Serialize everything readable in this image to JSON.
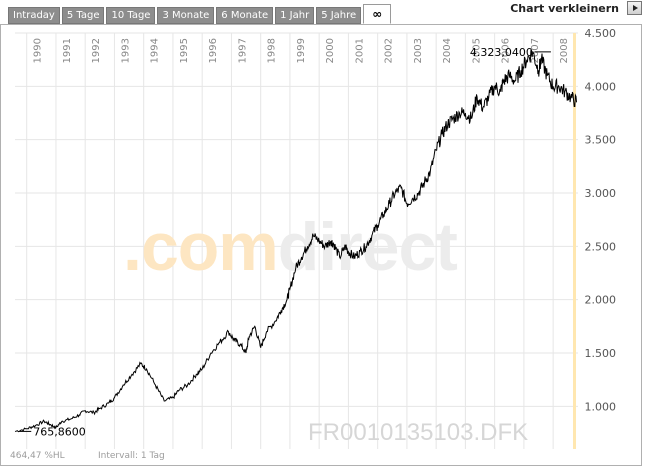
{
  "tabs": [
    {
      "label": "Intraday"
    },
    {
      "label": "5 Tage"
    },
    {
      "label": "10 Tage"
    },
    {
      "label": "3 Monate"
    },
    {
      "label": "6 Monate"
    },
    {
      "label": "1 Jahr"
    },
    {
      "label": "5 Jahre"
    },
    {
      "label": "∞"
    }
  ],
  "header": {
    "shrink_label": "Chart verkleinern"
  },
  "chart_data": {
    "type": "line",
    "watermark": ".comdirect",
    "symbol": "FR0010135103.DFK",
    "info": "464,47 %HL",
    "interval": "Intervall: 1 Tag",
    "high_label": "4.323,0400",
    "low_label": "765,8600",
    "x_ticks": [
      "1990",
      "1991",
      "1992",
      "1993",
      "1994",
      "1995",
      "1996",
      "1997",
      "1998",
      "1999",
      "2000",
      "2001",
      "2002",
      "2003",
      "2004",
      "2005",
      "2006",
      "2007",
      "2008"
    ],
    "y_ticks": [
      "1.000",
      "1.500",
      "2.000",
      "2.500",
      "3.000",
      "3.500",
      "4.000",
      "4.500"
    ],
    "ylim": [
      600,
      4500
    ],
    "xlim": [
      1989.6,
      2008.85
    ],
    "grid": true,
    "series": [
      {
        "x": [
          1989.6,
          1990.0,
          1990.3,
          1990.6,
          1990.8,
          1991.0,
          1991.2,
          1991.5,
          1991.8,
          1992.0,
          1992.3,
          1992.5,
          1992.8,
          1993.0,
          1993.3,
          1993.6,
          1993.9,
          1994.1,
          1994.4,
          1994.7,
          1995.0,
          1995.2,
          1995.5,
          1995.8,
          1996.0,
          1996.3,
          1996.6,
          1996.9,
          1997.1,
          1997.3,
          1997.5,
          1997.6,
          1997.8,
          1998.0,
          1998.2,
          1998.5,
          1998.7,
          1998.9,
          1999.0,
          1999.2,
          1999.4,
          1999.6,
          1999.8,
          2000.0,
          2000.2,
          2000.4,
          2000.5,
          2000.7,
          2000.9,
          2001.0,
          2001.2,
          2001.4,
          2001.6,
          2001.8,
          2002.0,
          2002.2,
          2002.4,
          2002.6,
          2002.8,
          2003.0,
          2003.2,
          2003.4,
          2003.6,
          2003.8,
          2004.0,
          2004.2,
          2004.4,
          2004.6,
          2004.8,
          2005.0,
          2005.2,
          2005.4,
          2005.6,
          2005.8,
          2006.0,
          2006.2,
          2006.3,
          2006.5,
          2006.7,
          2006.9,
          2007.1,
          2007.3,
          2007.5,
          2007.6,
          2007.8,
          2008.0,
          2008.2,
          2008.4,
          2008.6,
          2008.8
        ],
        "y": [
          765,
          790,
          820,
          860,
          830,
          800,
          860,
          880,
          920,
          960,
          940,
          980,
          1030,
          1080,
          1200,
          1300,
          1400,
          1350,
          1200,
          1050,
          1080,
          1150,
          1200,
          1300,
          1350,
          1500,
          1600,
          1700,
          1620,
          1580,
          1500,
          1650,
          1750,
          1550,
          1700,
          1800,
          1900,
          2000,
          2100,
          2300,
          2400,
          2500,
          2600,
          2550,
          2500,
          2550,
          2520,
          2400,
          2500,
          2450,
          2400,
          2450,
          2500,
          2600,
          2700,
          2800,
          2900,
          3000,
          3050,
          2900,
          2950,
          3000,
          3100,
          3200,
          3400,
          3550,
          3650,
          3700,
          3750,
          3750,
          3700,
          3900,
          3800,
          3900,
          4000,
          3950,
          4050,
          4100,
          4050,
          4150,
          4250,
          4320,
          4150,
          4250,
          4100,
          4000,
          4000,
          3950,
          3900,
          3850
        ]
      }
    ]
  }
}
